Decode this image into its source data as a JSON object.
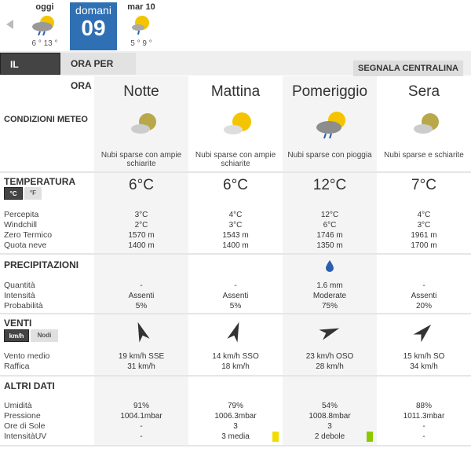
{
  "days": [
    {
      "label": "oggi",
      "temps": "6 ° 13 °",
      "icon": "sun-cloud-rain-icon"
    },
    {
      "label": "domani",
      "number": "09"
    },
    {
      "label": "mar 10",
      "temps": "5 ° 9 °",
      "icon": "sun-cloud-drizzle-icon"
    }
  ],
  "tabs": {
    "giorno": "IL GIORNO",
    "ora": "ORA PER ORA",
    "segnala": "SEGNALA CENTRALINA"
  },
  "labels": {
    "condizioni": "CONDIZIONI METEO",
    "temperatura": "TEMPERATURA",
    "celsius": "°C",
    "fahrenheit": "°F",
    "percepita": "Percepita",
    "windchill": "Windchill",
    "zero": "Zero Termico",
    "neve": "Quota neve",
    "precipitazioni": "PRECIPITAZIONI",
    "quantita": "Quantità",
    "intensita": "Intensità",
    "probabilita": "Probabilità",
    "venti": "VENTI",
    "kmh": "km/h",
    "nodi": "Nodi",
    "vento": "Vento medio",
    "raffica": "Raffica",
    "altri": "ALTRI DATI",
    "umidita": "Umidità",
    "pressione": "Pressione",
    "sole": "Ore di Sole",
    "uv": "IntensitàUV"
  },
  "periods": [
    {
      "name": "Notte",
      "icon": "moon-cloud-icon",
      "desc": "Nubi sparse con ampie schiarite",
      "temp": "6°C",
      "percepita": "3°C",
      "windchill": "2°C",
      "zero": "1570 m",
      "neve": "1400 m",
      "quantita": "-",
      "intensita": "Assenti",
      "probabilita": "5%",
      "wind_dir": "SSE",
      "vento": "19 km/h  SSE",
      "raffica": "31 km/h",
      "umidita": "91%",
      "pressione": "1004.1mbar",
      "sole": "-",
      "uv": "-"
    },
    {
      "name": "Mattina",
      "icon": "sun-cloud-icon",
      "desc": "Nubi sparse con ampie schiarite",
      "temp": "6°C",
      "percepita": "4°C",
      "windchill": "3°C",
      "zero": "1543 m",
      "neve": "1400 m",
      "quantita": "-",
      "intensita": "Assenti",
      "probabilita": "5%",
      "wind_dir": "SSO",
      "vento": "14 km/h SSO",
      "raffica": "18 km/h",
      "umidita": "79%",
      "pressione": "1006.3mbar",
      "sole": "3",
      "uv": "3 media",
      "uv_color": "#f2dc00"
    },
    {
      "name": "Pomeriggio",
      "icon": "sun-cloud-rain-icon",
      "desc": "Nubi sparse con pioggia",
      "temp": "12°C",
      "percepita": "12°C",
      "windchill": "6°C",
      "zero": "1746 m",
      "neve": "1350 m",
      "quantita": "1.6 mm",
      "intensita": "Moderate",
      "probabilita": "75%",
      "wind_dir": "OSO",
      "vento": "23 km/h OSO",
      "raffica": "28 km/h",
      "umidita": "54%",
      "pressione": "1008.8mbar",
      "sole": "3",
      "uv": "2 debole",
      "uv_color": "#8cc800"
    },
    {
      "name": "Sera",
      "icon": "moon-cloud-icon",
      "desc": "Nubi sparse e schiarite",
      "temp": "7°C",
      "percepita": "4°C",
      "windchill": "3°C",
      "zero": "1961 m",
      "neve": "1700 m",
      "quantita": "-",
      "intensita": "Assenti",
      "probabilita": "20%",
      "wind_dir": "SO",
      "vento": "15 km/h SO",
      "raffica": "34 km/h",
      "umidita": "88%",
      "pressione": "1011.3mbar",
      "sole": "-",
      "uv": "-"
    }
  ]
}
